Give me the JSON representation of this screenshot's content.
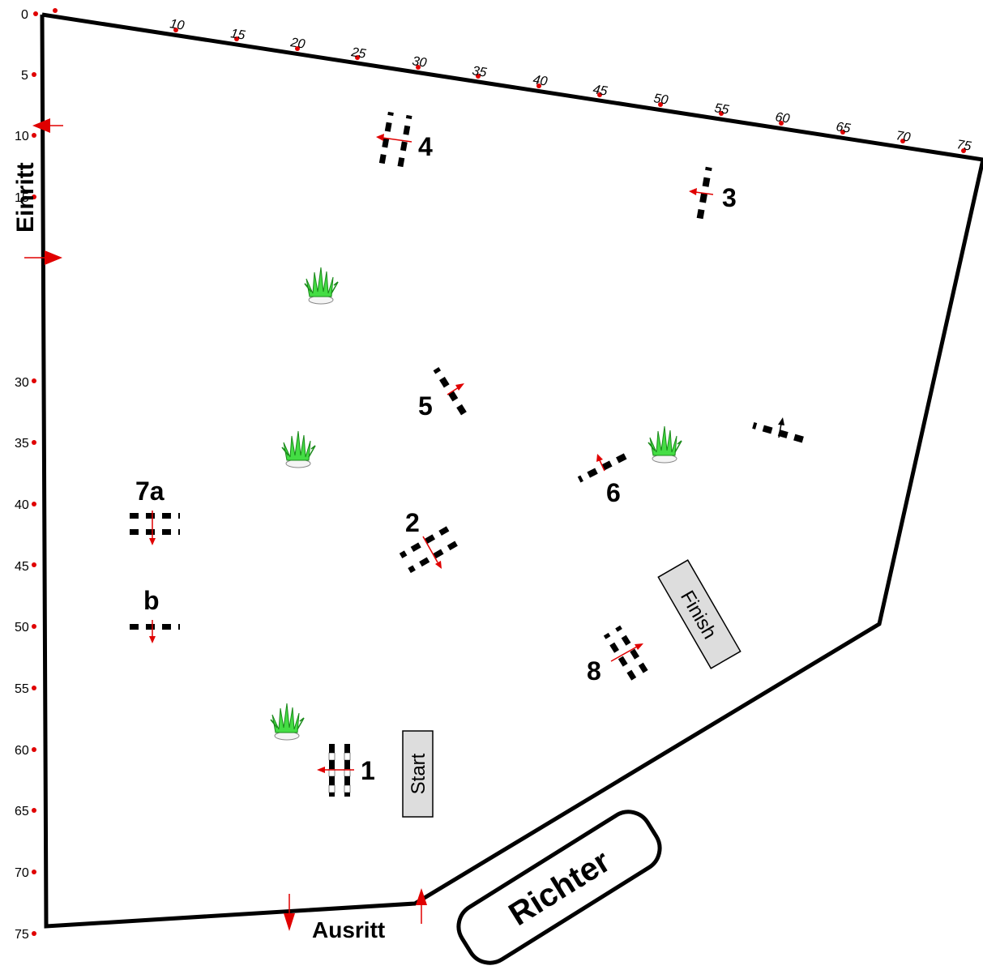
{
  "left_scale": [
    "0",
    "5",
    "10",
    "15",
    "30",
    "35",
    "40",
    "45",
    "50",
    "55",
    "60",
    "65",
    "70",
    "75"
  ],
  "top_scale": [
    "10",
    "15",
    "20",
    "25",
    "30",
    "35",
    "40",
    "45",
    "50",
    "55",
    "60",
    "65",
    "70",
    "75"
  ],
  "labels": {
    "entry": "Einritt",
    "exit": "Ausritt",
    "judge": "Richter",
    "start": "Start",
    "finish": "Finish"
  },
  "obstacles": {
    "o1": "1",
    "o2": "2",
    "o3": "3",
    "o4": "4",
    "o5": "5",
    "o6": "6",
    "o7a": "7a",
    "o7b": "b",
    "o8": "8"
  },
  "colors": {
    "boundary": "#000000",
    "marker": "#e00000",
    "plant": "#33cc33",
    "box_fill": "#dddddd"
  },
  "icons": [
    "plant-icon",
    "arrow-icon"
  ]
}
